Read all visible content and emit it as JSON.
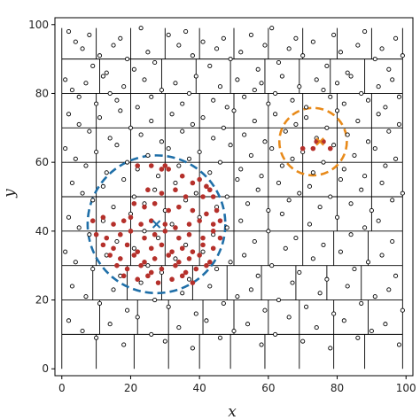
{
  "chart_data": {
    "type": "scatter",
    "xlabel": "x",
    "ylabel": "y",
    "xlim": [
      -2,
      102
    ],
    "ylim": [
      -2,
      102
    ],
    "xticks": [
      "0",
      "20",
      "40",
      "60",
      "80",
      "100"
    ],
    "yticks": [
      "0",
      "20",
      "40",
      "60",
      "80",
      "100"
    ],
    "grid": true,
    "grid_lines": {
      "rows": [
        10,
        20,
        30,
        40,
        50,
        60,
        70,
        80,
        90
      ],
      "row_segments": [
        [
          0,
          10,
          21,
          31,
          40,
          49,
          59,
          69,
          79,
          88,
          99
        ],
        [
          0,
          11,
          22,
          31,
          41,
          50,
          60,
          69,
          79,
          89,
          99
        ],
        [
          0,
          9,
          19,
          29,
          38,
          48,
          58,
          68,
          77,
          87,
          99
        ],
        [
          0,
          10,
          20,
          30,
          40,
          50,
          60,
          70,
          79,
          89,
          99
        ],
        [
          0,
          10,
          20,
          30,
          40,
          50,
          60,
          70,
          80,
          90,
          99
        ],
        [
          0,
          10,
          20,
          30,
          40,
          50,
          60,
          70,
          80,
          90,
          99
        ],
        [
          0,
          10,
          20,
          30,
          40,
          50,
          60,
          70,
          80,
          90,
          99
        ],
        [
          0,
          10,
          20,
          30,
          40,
          50,
          60,
          70,
          80,
          90,
          99
        ],
        [
          0,
          11,
          20,
          29,
          39,
          49,
          59,
          69,
          78,
          88,
          99
        ],
        [
          0,
          10,
          20,
          30,
          40,
          50,
          60,
          70,
          80,
          90,
          99
        ]
      ]
    },
    "colors": {
      "hollow_points": "#000000",
      "highlight_points": "#b5302b",
      "circle_blue": "#1f6fa8",
      "circle_orange": "#e88a1a",
      "grid": "#000000"
    },
    "series": [
      {
        "marker": "hollow-circle",
        "x": [
          2,
          4,
          6,
          8,
          9,
          11,
          13,
          15,
          17,
          19,
          21,
          23,
          25,
          27,
          31,
          34,
          36,
          38,
          41,
          43,
          45,
          47,
          49,
          52,
          55,
          57,
          59,
          61,
          63,
          66,
          68,
          70,
          73,
          77,
          79,
          81,
          83,
          86,
          88,
          91,
          93,
          95,
          97,
          99,
          1,
          3,
          5,
          7,
          10,
          12,
          14,
          16,
          18,
          22,
          24,
          26,
          29,
          33,
          35,
          37,
          39,
          44,
          46,
          48,
          51,
          53,
          56,
          58,
          60,
          62,
          64,
          67,
          69,
          71,
          74,
          76,
          78,
          80,
          82,
          84,
          87,
          89,
          92,
          94,
          96,
          98,
          2,
          5,
          8,
          11,
          14,
          17,
          20,
          23,
          26,
          29,
          32,
          35,
          38,
          41,
          44,
          47,
          50,
          53,
          56,
          59,
          62,
          65,
          68,
          71,
          74,
          77,
          80,
          83,
          86,
          89,
          92,
          95,
          98,
          1,
          4,
          7,
          10,
          13,
          16,
          19,
          22,
          25,
          28,
          31,
          34,
          37,
          40,
          43,
          46,
          49,
          52,
          55,
          58,
          61,
          64,
          67,
          70,
          73,
          76,
          79,
          82,
          85,
          88,
          91,
          94,
          97,
          3,
          6,
          9,
          12,
          15,
          18,
          21,
          24,
          27,
          30,
          33,
          36,
          39,
          42,
          45,
          48,
          51,
          54,
          57,
          60,
          63,
          66,
          69,
          72,
          75,
          78,
          81,
          84,
          87,
          90,
          93,
          96,
          99,
          2,
          5,
          8,
          12,
          16,
          20,
          24,
          28,
          32,
          36,
          40,
          44,
          48,
          52,
          56,
          60,
          64,
          68,
          72,
          76,
          80,
          84,
          88,
          92,
          96,
          1,
          4,
          9,
          13,
          17,
          21,
          25,
          29,
          33,
          37,
          41,
          45,
          49,
          53,
          57,
          61,
          65,
          69,
          73,
          77,
          81,
          85,
          89,
          93,
          97,
          3,
          7,
          11,
          15,
          19,
          23,
          27,
          31,
          35,
          39,
          43,
          47,
          51,
          55,
          59,
          63,
          67,
          71,
          75,
          79,
          83,
          87,
          91,
          95,
          99,
          2,
          6,
          10,
          14,
          18,
          22,
          26,
          30,
          34,
          38,
          42,
          46,
          50,
          54,
          58,
          62,
          66,
          70,
          74,
          78,
          82,
          86,
          90,
          94,
          98
        ],
        "y": [
          98,
          95,
          93,
          97,
          88,
          91,
          86,
          94,
          96,
          90,
          87,
          99,
          92,
          89,
          97,
          94,
          98,
          91,
          95,
          88,
          93,
          96,
          90,
          92,
          97,
          87,
          94,
          99,
          89,
          93,
          96,
          91,
          95,
          88,
          97,
          92,
          86,
          94,
          98,
          90,
          93,
          87,
          96,
          91,
          84,
          81,
          79,
          83,
          77,
          85,
          80,
          78,
          82,
          76,
          84,
          79,
          81,
          83,
          77,
          80,
          85,
          78,
          82,
          76,
          84,
          79,
          81,
          83,
          77,
          80,
          85,
          78,
          82,
          76,
          84,
          81,
          79,
          83,
          77,
          85,
          80,
          78,
          82,
          76,
          84,
          79,
          74,
          71,
          69,
          73,
          67,
          75,
          70,
          68,
          72,
          66,
          74,
          69,
          71,
          73,
          67,
          70,
          75,
          68,
          72,
          66,
          74,
          69,
          71,
          73,
          67,
          70,
          75,
          68,
          72,
          66,
          74,
          69,
          71,
          64,
          61,
          59,
          63,
          57,
          65,
          60,
          58,
          62,
          56,
          64,
          59,
          61,
          63,
          57,
          60,
          65,
          58,
          62,
          56,
          64,
          59,
          61,
          63,
          57,
          60,
          65,
          58,
          62,
          56,
          64,
          59,
          61,
          54,
          51,
          49,
          53,
          47,
          55,
          50,
          48,
          52,
          46,
          54,
          49,
          51,
          53,
          47,
          50,
          55,
          48,
          52,
          46,
          54,
          49,
          51,
          53,
          47,
          50,
          55,
          48,
          52,
          46,
          54,
          49,
          51,
          44,
          41,
          39,
          43,
          37,
          45,
          40,
          38,
          42,
          36,
          44,
          39,
          41,
          43,
          37,
          40,
          45,
          38,
          42,
          36,
          44,
          39,
          41,
          43,
          37,
          34,
          31,
          29,
          33,
          27,
          35,
          30,
          28,
          32,
          26,
          34,
          29,
          31,
          33,
          27,
          30,
          35,
          28,
          32,
          26,
          34,
          29,
          31,
          33,
          27,
          24,
          21,
          19,
          23,
          17,
          25,
          20,
          18,
          22,
          16,
          24,
          19,
          21,
          23,
          17,
          20,
          25,
          18,
          22,
          16,
          24,
          19,
          21,
          23,
          17,
          14,
          11,
          9,
          13,
          7,
          15,
          10,
          8,
          12,
          6,
          14,
          9,
          11,
          13,
          7,
          10,
          15,
          8,
          12,
          6,
          14,
          9,
          11,
          13,
          7
        ]
      },
      {
        "marker": "filled-circle",
        "x": [
          22,
          26,
          29,
          30,
          31,
          35,
          38,
          40,
          42,
          43,
          25,
          29,
          33,
          36,
          41,
          44,
          21,
          24,
          27,
          31,
          34,
          38,
          42,
          45,
          9,
          12,
          15,
          18,
          20,
          23,
          26,
          30,
          33,
          37,
          40,
          44,
          46,
          10,
          13,
          17,
          20,
          24,
          27,
          30,
          34,
          37,
          41,
          44,
          46,
          12,
          15,
          19,
          22,
          26,
          29,
          32,
          35,
          38,
          41,
          44,
          14,
          17,
          21,
          24,
          27,
          31,
          34,
          37,
          40,
          43,
          16,
          19,
          23,
          26,
          29,
          33,
          36,
          39,
          42,
          18,
          22,
          25,
          28,
          32,
          35,
          38,
          70,
          73,
          74,
          78,
          76
        ],
        "y": [
          59,
          59,
          58,
          59,
          58,
          56,
          54,
          55,
          53,
          52,
          52,
          51,
          52,
          50,
          50,
          50,
          48,
          47,
          48,
          46,
          47,
          46,
          45,
          46,
          43,
          44,
          42,
          43,
          44,
          42,
          43,
          42,
          41,
          42,
          43,
          42,
          43,
          39,
          38,
          39,
          40,
          38,
          39,
          40,
          38,
          39,
          38,
          40,
          38,
          36,
          35,
          36,
          34,
          35,
          36,
          34,
          35,
          34,
          36,
          35,
          33,
          32,
          33,
          31,
          32,
          33,
          31,
          32,
          33,
          31,
          30,
          29,
          30,
          28,
          29,
          30,
          28,
          29,
          30,
          27,
          26,
          27,
          25,
          26,
          27,
          25,
          64,
          64,
          66,
          64,
          66
        ]
      }
    ],
    "markers": [
      {
        "symbol": "x",
        "x": 27.5,
        "y": 42,
        "color": "#1f6fa8"
      },
      {
        "symbol": "x",
        "x": 75,
        "y": 66,
        "color": "#e88a1a"
      }
    ],
    "circles": [
      {
        "center_x": 27.5,
        "center_y": 42,
        "radius": 20,
        "style": "dashed",
        "color": "#1f6fa8"
      },
      {
        "center_x": 73,
        "center_y": 66,
        "radius": 9.8,
        "style": "dashed",
        "color": "#e88a1a"
      }
    ]
  }
}
